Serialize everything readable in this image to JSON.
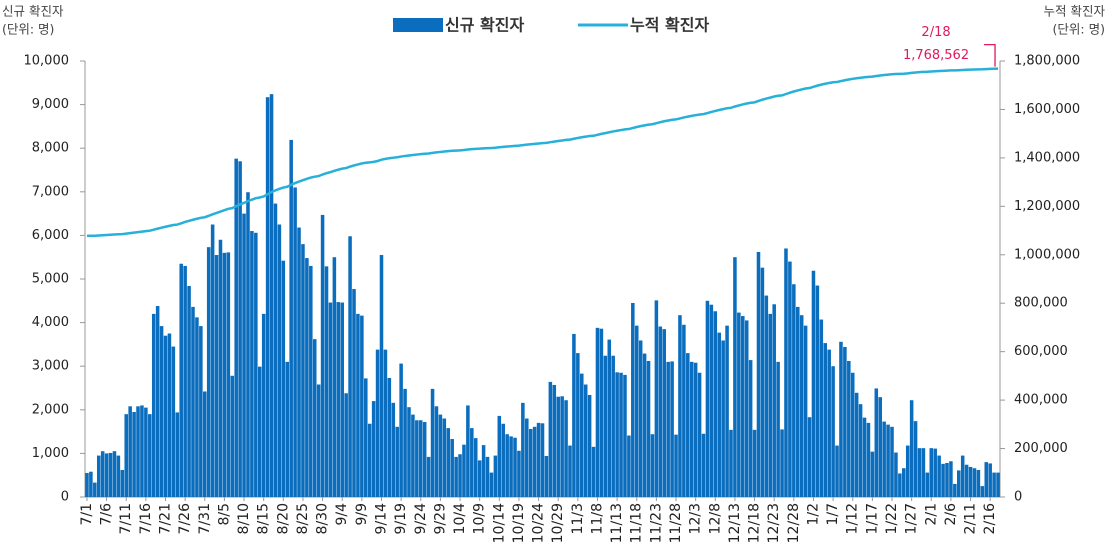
{
  "chart_data": {
    "type": "bar-line",
    "y_label": [
      "신규 확진자",
      "(단위: 명)"
    ],
    "y2_label": [
      "누적 확진자",
      "(단위: 명)"
    ],
    "annotation": "2/18",
    "categories": [
      "7/1",
      null,
      null,
      null,
      null,
      "7/6",
      null,
      null,
      null,
      null,
      "7/11",
      null,
      null,
      null,
      null,
      "7/16",
      null,
      null,
      null,
      null,
      "7/21",
      null,
      null,
      null,
      null,
      "7/26",
      null,
      null,
      null,
      null,
      "7/31",
      null,
      null,
      null,
      null,
      "8/5",
      null,
      null,
      null,
      null,
      "8/10",
      null,
      null,
      null,
      null,
      "8/15",
      null,
      null,
      null,
      null,
      "8/20",
      null,
      null,
      null,
      null,
      "8/25",
      null,
      null,
      null,
      null,
      "8/30",
      null,
      null,
      null,
      null,
      "9/4",
      null,
      null,
      null,
      null,
      "9/9",
      null,
      null,
      null,
      null,
      "9/14",
      null,
      null,
      null,
      null,
      "9/19",
      null,
      null,
      null,
      null,
      "9/24",
      null,
      null,
      null,
      null,
      "9/29",
      null,
      null,
      null,
      null,
      "10/4",
      null,
      null,
      null,
      null,
      "10/9",
      null,
      null,
      null,
      null,
      "10/14",
      null,
      null,
      null,
      null,
      "10/19",
      null,
      null,
      null,
      null,
      "10/24",
      null,
      null,
      null,
      null,
      "10/29",
      null,
      null,
      null,
      null,
      "11/3",
      null,
      null,
      null,
      null,
      "11/8",
      null,
      null,
      null,
      null,
      "11/13",
      null,
      null,
      null,
      null,
      "11/18",
      null,
      null,
      null,
      null,
      "11/23",
      null,
      null,
      null,
      null,
      "11/28",
      null,
      null,
      null,
      null,
      "12/3",
      null,
      null,
      null,
      null,
      "12/8",
      null,
      null,
      null,
      null,
      "12/13",
      null,
      null,
      null,
      null,
      "12/18",
      null,
      null,
      null,
      null,
      "12/23",
      null,
      null,
      null,
      null,
      "12/28",
      null,
      null,
      null,
      null,
      "1/2",
      null,
      null,
      null,
      null,
      "1/7",
      null,
      null,
      null,
      null,
      "1/12",
      null,
      null,
      null,
      null,
      "1/17",
      null,
      null,
      null,
      null,
      "1/22",
      null,
      null,
      null,
      null,
      "1/27",
      null,
      null,
      null,
      null,
      "2/1",
      null,
      null,
      null,
      null,
      "2/6",
      null,
      null,
      null,
      null,
      "2/11",
      null,
      null,
      null,
      null,
      "2/16",
      null,
      null
    ],
    "series": [
      {
        "name": "신규 확진자",
        "type": "bar",
        "color": "#0b6dbd",
        "values": [
          550,
          580,
          330,
          950,
          1050,
          1000,
          1010,
          1050,
          950,
          620,
          1900,
          2080,
          1950,
          2080,
          2100,
          2050,
          1900,
          4200,
          4380,
          3920,
          3700,
          3750,
          3450,
          1940,
          5350,
          5300,
          4840,
          4360,
          4120,
          3920,
          2420,
          5730,
          6250,
          5550,
          5900,
          5600,
          5610,
          2780,
          7760,
          7700,
          6500,
          6990,
          6100,
          6060,
          2990,
          4200,
          9170,
          9240,
          6730,
          6250,
          5420,
          3100,
          8190,
          7100,
          6180,
          5800,
          5480,
          5300,
          3620,
          2580,
          6470,
          5290,
          4460,
          5500,
          4470,
          4460,
          2380,
          5980,
          4770,
          4200,
          4160,
          2720,
          1680,
          2200,
          3380,
          5550,
          3380,
          2730,
          2160,
          1610,
          3060,
          2480,
          2060,
          1890,
          1760,
          1760,
          1720,
          920,
          2480,
          2080,
          1890,
          1800,
          1580,
          1330,
          920,
          980,
          1200,
          2100,
          1580,
          1350,
          840,
          1190,
          920,
          560,
          950,
          1860,
          1680,
          1440,
          1390,
          1360,
          1060,
          2160,
          1800,
          1560,
          1610,
          1700,
          1690,
          940,
          2640,
          2570,
          2300,
          2310,
          2220,
          1180,
          3740,
          3300,
          2830,
          2580,
          2340,
          1150,
          3880,
          3860,
          3240,
          3610,
          3240,
          2860,
          2850,
          2800,
          1410,
          4450,
          3930,
          3590,
          3290,
          3120,
          1440,
          4510,
          3910,
          3850,
          3100,
          3110,
          1430,
          4170,
          3950,
          3300,
          3100,
          3080,
          2850,
          1450,
          4500,
          4410,
          4260,
          3770,
          3590,
          3930,
          1540,
          5500,
          4230,
          4150,
          4050,
          3140,
          1540,
          5620,
          5260,
          4620,
          4200,
          4420,
          3100,
          1550,
          5700,
          5400,
          4880,
          4360,
          4170,
          3930,
          1830,
          5190,
          4850,
          4070,
          3530,
          3380,
          3000,
          1180,
          3560,
          3440,
          3120,
          2850,
          2390,
          2130,
          1820,
          1700,
          1040,
          2490,
          2290,
          1730,
          1660,
          1610,
          1020,
          540,
          660,
          1180,
          2220,
          1740,
          1120,
          1120,
          560,
          1120,
          1110,
          950,
          760,
          780,
          820,
          300,
          610,
          950,
          740,
          690,
          660,
          620,
          250,
          800,
          770,
          560,
          560
        ]
      },
      {
        "name": "누적 확진자",
        "type": "line",
        "axis": "y2",
        "color": "#27b0d9",
        "values": [
          1077802,
          1078382,
          1078712,
          1079662,
          1080712,
          1081712,
          1082722,
          1083772,
          1084722,
          1085342,
          1087242,
          1089322,
          1091272,
          1093352,
          1095452,
          1097502,
          1099402,
          1103602,
          1107982,
          1111902,
          1115602,
          1119352,
          1122802,
          1124742,
          1130092,
          1135392,
          1140232,
          1144592,
          1148712,
          1152632,
          1155052,
          1160782,
          1167032,
          1172582,
          1178482,
          1184082,
          1189692,
          1192472,
          1200232,
          1207932,
          1214432,
          1221422,
          1227522,
          1233582,
          1236572,
          1240772,
          1249942,
          1259182,
          1265912,
          1272162,
          1277582,
          1280682,
          1288872,
          1295972,
          1302152,
          1307952,
          1313432,
          1318732,
          1322352,
          1324932,
          1331402,
          1336692,
          1341152,
          1346652,
          1351122,
          1355582,
          1357962,
          1363942,
          1368712,
          1372912,
          1377072,
          1379792,
          1381472,
          1383672,
          1387052,
          1392602,
          1395982,
          1398712,
          1400872,
          1402482,
          1405542,
          1408022,
          1410082,
          1411972,
          1413732,
          1415492,
          1417212,
          1418132,
          1420612,
          1422692,
          1424582,
          1426382,
          1427962,
          1429292,
          1430212,
          1431192,
          1432392,
          1434492,
          1436072,
          1437422,
          1438262,
          1439452,
          1440372,
          1440932,
          1441882,
          1443742,
          1445422,
          1446862,
          1448252,
          1449612,
          1450672,
          1452832,
          1454632,
          1456192,
          1457802,
          1459502,
          1461192,
          1462132,
          1464772,
          1467342,
          1469642,
          1471952,
          1474172,
          1475352,
          1479092,
          1482392,
          1485222,
          1487802,
          1490142,
          1491292,
          1495172,
          1499032,
          1502272,
          1505882,
          1509122,
          1511982,
          1514832,
          1517632,
          1519042,
          1523492,
          1527422,
          1531012,
          1534302,
          1537422,
          1538862,
          1543372,
          1547282,
          1551132,
          1554232,
          1557342,
          1558772,
          1562942,
          1566892,
          1570192,
          1573292,
          1576372,
          1579222,
          1580672,
          1585172,
          1589582,
          1593842,
          1597612,
          1601202,
          1605132,
          1606672,
          1612172,
          1616402,
          1620552,
          1624602,
          1627742,
          1629282,
          1634902,
          1640162,
          1644782,
          1648982,
          1653402,
          1656502,
          1658052,
          1663752,
          1669152,
          1674032,
          1678392,
          1682562,
          1686492,
          1688322,
          1693512,
          1698362,
          1702432,
          1705962,
          1709342,
          1712342,
          1713522,
          1717082,
          1720522,
          1723642,
          1726492,
          1728882,
          1731012,
          1732832,
          1734532,
          1735572,
          1738062,
          1740352,
          1742082,
          1743742,
          1745352,
          1746372,
          1746912,
          1747572,
          1748752,
          1750972,
          1752712,
          1753832,
          1754952,
          1755512,
          1756632,
          1757742,
          1758692,
          1759452,
          1760232,
          1761052,
          1761352,
          1761962,
          1762912,
          1763652,
          1764342,
          1765002,
          1765622,
          1765872,
          1766672,
          1767442,
          1768002,
          1768562
        ],
        "value_labels": [
          null,
          null,
          null,
          null,
          null,
          null,
          null,
          null,
          null,
          null,
          null,
          null,
          null,
          null,
          null,
          null,
          null,
          null,
          null,
          null,
          null,
          null,
          null,
          null,
          null,
          null,
          null,
          null,
          null,
          null,
          null,
          null,
          null,
          null,
          null,
          null,
          null,
          null,
          null,
          null,
          null,
          null,
          null,
          null,
          null,
          null,
          null,
          null,
          null,
          null,
          null,
          null,
          null,
          null,
          null,
          null,
          null,
          null,
          null,
          null,
          null,
          null,
          null,
          null,
          null,
          null,
          null,
          null,
          null,
          null,
          null,
          null,
          null,
          null,
          null,
          null,
          null,
          null,
          null,
          null,
          null,
          null,
          null,
          null,
          null,
          null,
          null,
          null,
          null,
          null,
          null,
          null,
          null,
          null,
          null,
          null,
          null,
          null,
          null,
          null,
          null,
          null,
          null,
          null,
          null,
          null,
          null,
          null,
          null,
          null,
          null,
          null,
          null,
          null,
          null,
          null,
          null,
          null,
          null,
          null,
          null,
          null,
          null,
          null,
          null,
          null,
          null,
          null,
          null,
          null,
          null,
          null,
          null,
          null,
          null,
          null,
          null,
          null,
          null,
          null,
          null,
          null,
          null,
          null,
          null,
          null,
          null,
          null,
          null,
          null,
          null,
          null,
          null,
          null,
          null,
          null,
          null,
          null,
          null,
          null,
          null,
          null,
          null,
          null,
          null,
          null,
          null,
          null,
          null,
          null,
          null,
          null,
          null,
          null,
          null,
          null,
          null,
          null,
          null,
          null,
          null,
          null,
          null,
          null,
          null,
          null,
          null,
          null,
          null,
          null,
          null,
          null,
          null,
          null,
          null,
          null,
          null,
          null,
          null,
          null,
          null,
          null,
          null,
          null,
          null,
          null,
          null,
          null,
          null,
          null,
          null,
          null,
          null,
          null,
          null,
          null,
          null,
          null,
          null,
          null,
          null,
          null,
          null,
          null,
          null,
          null,
          null,
          null,
          null,
          null,
          null,
          null,
          "1,768,562"
        ]
      }
    ],
    "ylim": [
      0,
      10000
    ],
    "yticks": [
      0,
      {
        "value": 1000,
        "label": "1,000"
      },
      {
        "value": 2000,
        "label": "2,000"
      },
      {
        "value": 3000,
        "label": "3,000"
      },
      {
        "value": 4000,
        "label": "4,000"
      },
      {
        "value": 5000,
        "label": "5,000"
      },
      {
        "value": 6000,
        "label": "6,000"
      },
      {
        "value": 7000,
        "label": "7,000"
      },
      {
        "value": 8000,
        "label": "8,000"
      },
      {
        "value": 9000,
        "label": "9,000"
      },
      {
        "value": 10000,
        "label": "10,000"
      }
    ],
    "y2lim": [
      0,
      1800000
    ],
    "y2ticks": [
      0,
      {
        "value": 200000,
        "label": "200,000"
      },
      {
        "value": 400000,
        "label": "400,000"
      },
      {
        "value": 600000,
        "label": "600,000"
      },
      {
        "value": 800000,
        "label": "800,000"
      },
      {
        "value": 1000000,
        "label": "1,000,000"
      },
      {
        "value": 1200000,
        "label": "1,200,000"
      },
      {
        "value": 1400000,
        "label": "1,400,000"
      },
      {
        "value": 1600000,
        "label": "1,600,000"
      },
      {
        "value": 1800000,
        "label": "1,800,000"
      }
    ],
    "grid": false,
    "legend": "top"
  }
}
